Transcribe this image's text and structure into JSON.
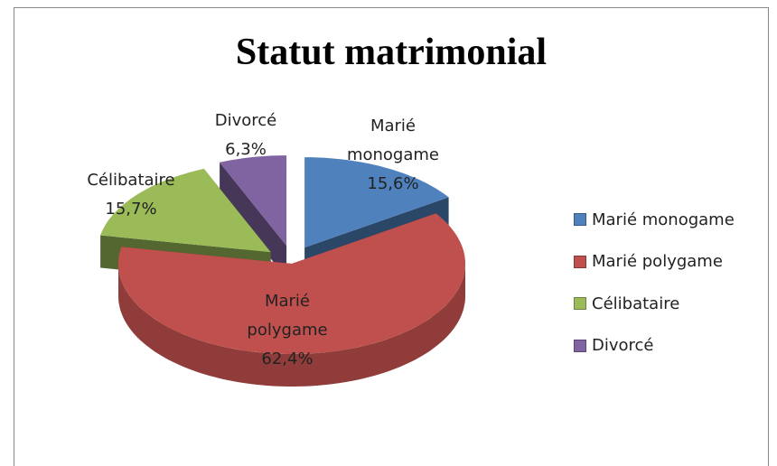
{
  "chart_data": {
    "type": "pie3d",
    "title": "Statut matrimonial",
    "categories": [
      "Marié monogame",
      "Marié polygame",
      "Célibataire",
      "Divorcé"
    ],
    "values": [
      15.6,
      62.4,
      15.7,
      6.3
    ],
    "value_labels": [
      "15,6%",
      "62,4%",
      "15,7%",
      "6,3%"
    ],
    "colors": [
      "#4f81bd",
      "#c0504d",
      "#9bbb59",
      "#8064a2"
    ],
    "exploded": [
      true,
      false,
      true,
      true
    ],
    "legend": "right"
  }
}
